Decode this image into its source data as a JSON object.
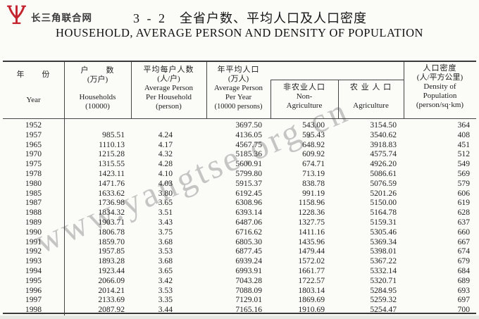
{
  "brand": {
    "name": "长三角联合网",
    "logo_color": "#c4232e"
  },
  "title": {
    "number": "3 - 2",
    "zh": "全省户数、平均人口及人口密度",
    "en": "HOUSEHOLD,  AVERAGE PERSON AND DENSITY OF POPULATION"
  },
  "watermark": {
    "text": "www.yangtse.org.cn"
  },
  "colors": {
    "accent_red": "#c4232e",
    "table_line": "#454545",
    "text": "#1e1e1e",
    "watermark": "#b3b3b3"
  },
  "table": {
    "header": {
      "year": {
        "zh": "年　　份",
        "en": "Year"
      },
      "households": {
        "zh": "户　　数",
        "unit": "(万户)",
        "en": "Households",
        "en_unit": "(10000)"
      },
      "avg_per_household": {
        "zh": "平均每户人数",
        "unit": "(人/户)",
        "en1": "Average Person",
        "en2": "Per Household",
        "en_unit": "(person)"
      },
      "avg_per_year": {
        "zh": "年平均人口",
        "unit": "(万人)",
        "en1": "Average Person",
        "en2": "Per Year",
        "en_unit": "(10000 persons)"
      },
      "non_agriculture": {
        "zh": "非农业人口",
        "en1": "Non-",
        "en2": "Agriculture"
      },
      "agriculture": {
        "zh": "农 业 人 口",
        "en1": "Agriculture"
      },
      "density": {
        "zh": "人口密度",
        "unit": "(人/平方公里)",
        "en1": "Density of",
        "en2": "Population",
        "en_unit": "(person/sq·km)"
      }
    },
    "rows": [
      {
        "year": "1952",
        "households": "",
        "avg_per_household": "",
        "avg_per_year": "3697.50",
        "non_agriculture": "543.00",
        "agriculture": "3154.50",
        "density": "364"
      },
      {
        "year": "1957",
        "households": "985.51",
        "avg_per_household": "4.24",
        "avg_per_year": "4136.05",
        "non_agriculture": "595.43",
        "agriculture": "3540.62",
        "density": "408"
      },
      {
        "year": "1965",
        "households": "1110.13",
        "avg_per_household": "4.17",
        "avg_per_year": "4567.75",
        "non_agriculture": "648.92",
        "agriculture": "3918.83",
        "density": "451"
      },
      {
        "year": "1970",
        "households": "1215.28",
        "avg_per_household": "4.32",
        "avg_per_year": "5185.36",
        "non_agriculture": "609.92",
        "agriculture": "4575.74",
        "density": "512"
      },
      {
        "year": "1975",
        "households": "1315.55",
        "avg_per_household": "4.28",
        "avg_per_year": "5600.91",
        "non_agriculture": "674.71",
        "agriculture": "4926.20",
        "density": "549"
      },
      {
        "year": "1978",
        "households": "1423.11",
        "avg_per_household": "4.10",
        "avg_per_year": "5799.80",
        "non_agriculture": "713.19",
        "agriculture": "5086.61",
        "density": "569"
      },
      {
        "year": "1980",
        "households": "1471.76",
        "avg_per_household": "4.03",
        "avg_per_year": "5915.37",
        "non_agriculture": "838.78",
        "agriculture": "5076.59",
        "density": "579"
      },
      {
        "year": "1985",
        "households": "1633.62",
        "avg_per_household": "3.80",
        "avg_per_year": "6192.45",
        "non_agriculture": "991.19",
        "agriculture": "5201.26",
        "density": "606"
      },
      {
        "year": "1987",
        "households": "1736.98",
        "avg_per_household": "3.65",
        "avg_per_year": "6308.96",
        "non_agriculture": "1158.96",
        "agriculture": "5150.00",
        "density": "619"
      },
      {
        "year": "1988",
        "households": "1834.32",
        "avg_per_household": "3.51",
        "avg_per_year": "6393.14",
        "non_agriculture": "1228.36",
        "agriculture": "5164.78",
        "density": "628"
      },
      {
        "year": "1989",
        "households": "1903.71",
        "avg_per_household": "3.43",
        "avg_per_year": "6487.06",
        "non_agriculture": "1327.75",
        "agriculture": "5159.31",
        "density": "637"
      },
      {
        "year": "1990",
        "households": "1806.78",
        "avg_per_household": "3.75",
        "avg_per_year": "6716.62",
        "non_agriculture": "1411.16",
        "agriculture": "5305.46",
        "density": "660"
      },
      {
        "year": "1991",
        "households": "1859.70",
        "avg_per_household": "3.68",
        "avg_per_year": "6805.30",
        "non_agriculture": "1435.96",
        "agriculture": "5369.34",
        "density": "667"
      },
      {
        "year": "1992",
        "households": "1957.85",
        "avg_per_household": "3.53",
        "avg_per_year": "6877.45",
        "non_agriculture": "1479.44",
        "agriculture": "5398.01",
        "density": "674"
      },
      {
        "year": "1993",
        "households": "1893.28",
        "avg_per_household": "3.68",
        "avg_per_year": "6939.24",
        "non_agriculture": "1572.02",
        "agriculture": "5367.22",
        "density": "679"
      },
      {
        "year": "1994",
        "households": "1923.44",
        "avg_per_household": "3.65",
        "avg_per_year": "6993.91",
        "non_agriculture": "1661.77",
        "agriculture": "5332.14",
        "density": "684"
      },
      {
        "year": "1995",
        "households": "2066.09",
        "avg_per_household": "3.42",
        "avg_per_year": "7043.28",
        "non_agriculture": "1722.57",
        "agriculture": "5320.71",
        "density": "689"
      },
      {
        "year": "1996",
        "households": "2014.21",
        "avg_per_household": "3.53",
        "avg_per_year": "7088.09",
        "non_agriculture": "1803.14",
        "agriculture": "5284.95",
        "density": "693"
      },
      {
        "year": "1997",
        "households": "2133.69",
        "avg_per_household": "3.35",
        "avg_per_year": "7129.01",
        "non_agriculture": "1869.69",
        "agriculture": "5259.32",
        "density": "697"
      },
      {
        "year": "1998",
        "households": "2087.92",
        "avg_per_household": "3.44",
        "avg_per_year": "7165.16",
        "non_agriculture": "1910.69",
        "agriculture": "5254.47",
        "density": "700"
      }
    ]
  }
}
